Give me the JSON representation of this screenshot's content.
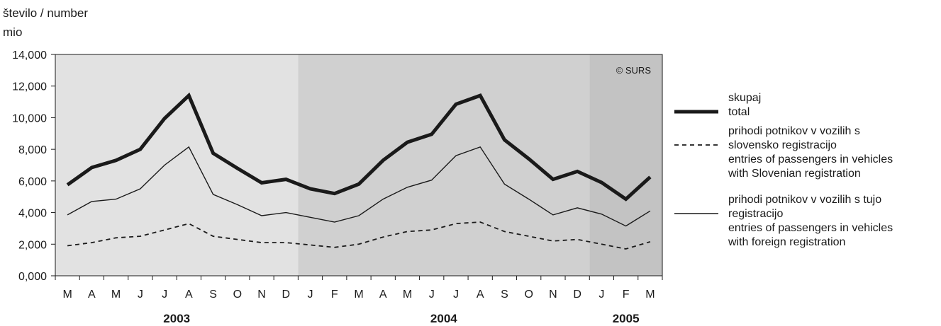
{
  "chart_data": {
    "type": "line",
    "ylabel_line1": "število / number",
    "ylabel_line2": "mio",
    "ylim": [
      0,
      14000
    ],
    "yticks": [
      "0,000",
      "2,000",
      "4,000",
      "6,000",
      "8,000",
      "10,000",
      "12,000",
      "14,000"
    ],
    "copyright": "© SURS",
    "categories": [
      "M",
      "A",
      "M",
      "J",
      "J",
      "A",
      "S",
      "O",
      "N",
      "D",
      "J",
      "F",
      "M",
      "A",
      "M",
      "J",
      "J",
      "A",
      "S",
      "O",
      "N",
      "D",
      "J",
      "F",
      "M"
    ],
    "years": [
      {
        "label": "2003",
        "start": 0,
        "end": 9,
        "shade": "#e2e2e2"
      },
      {
        "label": "2004",
        "start": 10,
        "end": 21,
        "shade": "#d0d0d0"
      },
      {
        "label": "2005",
        "start": 22,
        "end": 24,
        "shade": "#c3c3c3"
      }
    ],
    "series": [
      {
        "style": "thick",
        "legend": [
          "skupaj",
          "total"
        ],
        "values": [
          5750,
          6850,
          7300,
          8000,
          9950,
          11400,
          7750,
          6800,
          5880,
          6100,
          5500,
          5200,
          5800,
          7300,
          8450,
          8950,
          10850,
          11400,
          8600,
          7400,
          6100,
          6600,
          5900,
          4850,
          6250
        ]
      },
      {
        "style": "dashed",
        "legend": [
          "prihodi potnikov v vozilih s",
          "slovensko registracijo",
          "entries of passengers in vehicles",
          "with Slovenian registration"
        ],
        "values": [
          1900,
          2100,
          2400,
          2500,
          2900,
          3300,
          2500,
          2300,
          2100,
          2100,
          1950,
          1800,
          2000,
          2450,
          2800,
          2900,
          3300,
          3400,
          2800,
          2500,
          2200,
          2300,
          2000,
          1700,
          2150
        ]
      },
      {
        "style": "thin",
        "legend": [
          "prihodi potnikov v vozilih s tujo",
          "registracijo",
          "entries of passengers in vehicles",
          "with foreign  registration"
        ],
        "values": [
          3850,
          4700,
          4850,
          5500,
          7000,
          8150,
          5150,
          4500,
          3800,
          4000,
          3700,
          3400,
          3800,
          4850,
          5600,
          6050,
          7600,
          8150,
          5800,
          4850,
          3850,
          4300,
          3900,
          3150,
          4100
        ]
      }
    ]
  }
}
